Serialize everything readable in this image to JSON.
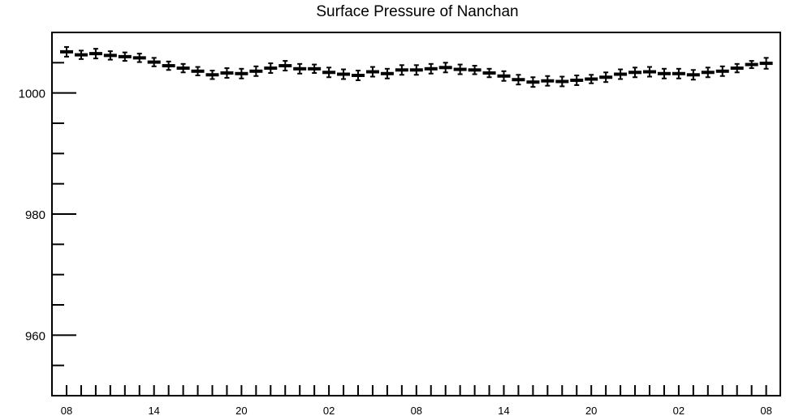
{
  "chart_data": {
    "type": "scatter",
    "title": "Surface Pressure of Nanchan",
    "xlabel": "",
    "ylabel": "",
    "ylim": [
      950,
      1010
    ],
    "y_ticks": [
      960,
      980,
      1000
    ],
    "x_tick_labels": [
      "08",
      "14",
      "20",
      "02",
      "08",
      "14",
      "20",
      "02",
      "08"
    ],
    "grid": false,
    "error_bars": true,
    "series": [
      {
        "values": [
          1006.8,
          1006.3,
          1006.5,
          1006.2,
          1006.0,
          1005.8,
          1005.1,
          1004.5,
          1004.1,
          1003.6,
          1003.0,
          1003.3,
          1003.2,
          1003.6,
          1004.1,
          1004.5,
          1004.0,
          1004.0,
          1003.4,
          1003.1,
          1002.9,
          1003.5,
          1003.2,
          1003.8,
          1003.8,
          1004.0,
          1004.2,
          1003.9,
          1003.8,
          1003.3,
          1002.8,
          1002.2,
          1001.8,
          1002.0,
          1001.9,
          1002.1,
          1002.3,
          1002.6,
          1003.1,
          1003.4,
          1003.5,
          1003.2,
          1003.2,
          1003.0,
          1003.4,
          1003.6,
          1004.1,
          1004.7,
          1004.9
        ],
        "errors": [
          0.8,
          0.7,
          0.8,
          0.7,
          0.7,
          0.7,
          0.7,
          0.7,
          0.7,
          0.7,
          0.7,
          0.8,
          0.8,
          0.8,
          0.8,
          0.8,
          0.8,
          0.7,
          0.8,
          0.8,
          0.8,
          0.8,
          0.8,
          0.8,
          0.8,
          0.8,
          0.8,
          0.8,
          0.7,
          0.7,
          0.8,
          0.8,
          0.8,
          0.8,
          0.8,
          0.8,
          0.7,
          0.8,
          0.8,
          0.8,
          0.8,
          0.8,
          0.8,
          0.8,
          0.8,
          0.8,
          0.7,
          0.6,
          0.9
        ]
      }
    ]
  }
}
